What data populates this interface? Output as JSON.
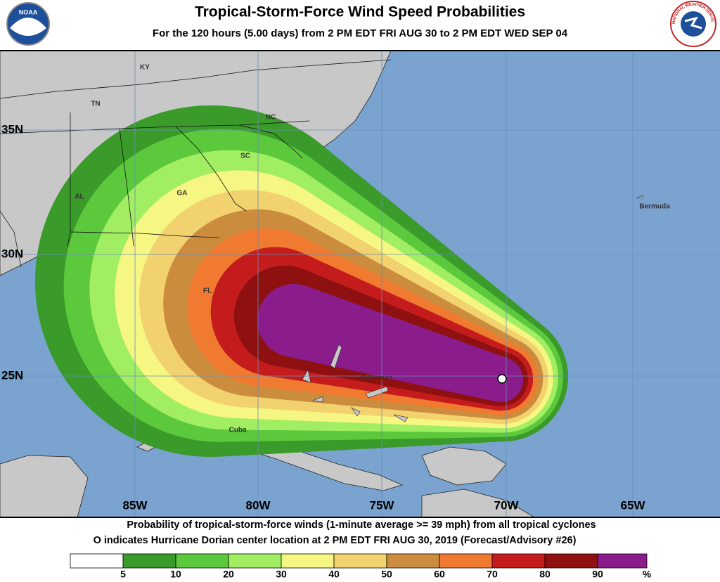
{
  "header": {
    "title": "Tropical-Storm-Force Wind Speed Probabilities",
    "subtitle": "For the 120 hours (5.00 days) from 2 PM EDT FRI AUG 30 to 2 PM EDT WED SEP 04",
    "left_logo": "NOAA",
    "right_logo": "NATIONAL WEATHER SERVICE"
  },
  "map": {
    "lat_labels": [
      "35N",
      "30N",
      "25N"
    ],
    "lon_labels": [
      "85W",
      "80W",
      "75W",
      "70W",
      "65W"
    ],
    "places": [
      "KY",
      "TN",
      "NC",
      "SC",
      "GA",
      "AL",
      "FL",
      "Bermuda",
      "Bahamas",
      "Cuba"
    ]
  },
  "footer": {
    "line1": "Probability of tropical-storm-force winds (1-minute average >= 39 mph) from all tropical cyclones",
    "line2": "O indicates Hurricane Dorian center location at 2 PM EDT FRI AUG 30, 2019 (Forecast/Advisory #26)"
  },
  "legend": {
    "ticks": [
      5,
      10,
      20,
      30,
      40,
      50,
      60,
      70,
      80,
      90
    ],
    "unit": "%",
    "colors": [
      "#ffffff",
      "#3a9a2a",
      "#5cc83c",
      "#a2ee62",
      "#f6f682",
      "#f2d26e",
      "#cc8c3e",
      "#f07a30",
      "#c41c1c",
      "#8e1010",
      "#8a1c8c"
    ]
  }
}
